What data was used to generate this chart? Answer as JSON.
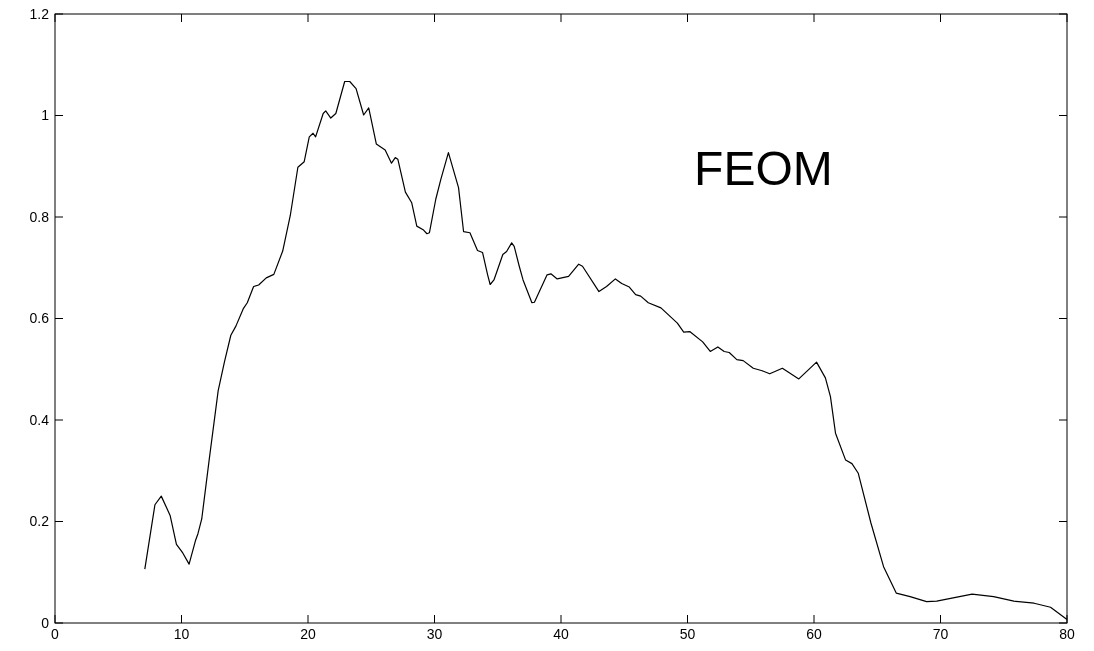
{
  "chart_data": {
    "type": "line",
    "annotations": [
      "FEOM"
    ],
    "x": [
      7.1,
      7.9,
      8.4,
      9.1,
      9.6,
      10.1,
      10.6,
      11.1,
      11.3,
      11.6,
      12.2,
      12.9,
      13.4,
      13.9,
      14.3,
      14.9,
      15.2,
      15.7,
      16.1,
      16.7,
      17.3,
      18.0,
      18.6,
      19.2,
      19.7,
      20.1,
      20.4,
      20.6,
      21.2,
      21.4,
      21.8,
      22.2,
      22.9,
      23.3,
      23.8,
      24.4,
      24.8,
      25.4,
      26.1,
      26.6,
      26.9,
      27.1,
      27.7,
      28.2,
      28.6,
      29.1,
      29.4,
      29.6,
      30.1,
      30.5,
      31.1,
      31.9,
      32.3,
      32.8,
      33.4,
      33.8,
      34.2,
      34.4,
      34.7,
      35.4,
      35.7,
      36.1,
      36.3,
      36.7,
      37.0,
      37.7,
      37.9,
      38.9,
      39.2,
      39.7,
      40.6,
      41.4,
      41.7,
      43.0,
      43.6,
      44.3,
      44.8,
      45.4,
      45.9,
      46.3,
      46.9,
      47.9,
      49.2,
      49.7,
      50.2,
      51.2,
      51.8,
      52.4,
      52.9,
      53.3,
      53.9,
      54.4,
      55.2,
      55.9,
      56.5,
      57.5,
      58.8,
      60.2,
      60.9,
      61.3,
      61.7,
      62.5,
      63.0,
      63.5,
      64.5,
      65.5,
      66.5,
      67.6,
      68.9,
      69.7,
      72.5,
      74.2,
      75.8,
      77.4,
      78.7,
      80
    ],
    "series": [
      {
        "color": "#000000",
        "values": [
          0.106,
          0.233,
          0.25,
          0.212,
          0.155,
          0.138,
          0.116,
          0.162,
          0.176,
          0.205,
          0.324,
          0.458,
          0.515,
          0.567,
          0.585,
          0.62,
          0.631,
          0.663,
          0.666,
          0.68,
          0.687,
          0.733,
          0.803,
          0.898,
          0.909,
          0.958,
          0.965,
          0.958,
          1.004,
          1.009,
          0.995,
          1.004,
          1.067,
          1.067,
          1.053,
          1.001,
          1.015,
          0.944,
          0.932,
          0.906,
          0.917,
          0.914,
          0.849,
          0.828,
          0.782,
          0.775,
          0.767,
          0.769,
          0.835,
          0.874,
          0.927,
          0.858,
          0.771,
          0.769,
          0.734,
          0.73,
          0.686,
          0.667,
          0.676,
          0.726,
          0.732,
          0.749,
          0.742,
          0.703,
          0.676,
          0.631,
          0.632,
          0.686,
          0.688,
          0.678,
          0.683,
          0.707,
          0.703,
          0.653,
          0.663,
          0.678,
          0.669,
          0.662,
          0.647,
          0.644,
          0.631,
          0.621,
          0.591,
          0.573,
          0.574,
          0.554,
          0.535,
          0.544,
          0.535,
          0.533,
          0.519,
          0.517,
          0.502,
          0.497,
          0.491,
          0.502,
          0.481,
          0.514,
          0.483,
          0.446,
          0.374,
          0.321,
          0.314,
          0.295,
          0.197,
          0.111,
          0.059,
          0.052,
          0.042,
          0.043,
          0.057,
          0.052,
          0.043,
          0.039,
          0.031,
          0.007
        ]
      }
    ],
    "xlim": [
      0,
      80
    ],
    "xticks": [
      0,
      10,
      20,
      30,
      40,
      50,
      60,
      70,
      80
    ],
    "ylim": [
      0,
      1.2
    ],
    "yticks": [
      0,
      0.2,
      0.4,
      0.6,
      0.8,
      1,
      1.2
    ],
    "grid": false,
    "marker": "none",
    "line_style": "solid"
  }
}
